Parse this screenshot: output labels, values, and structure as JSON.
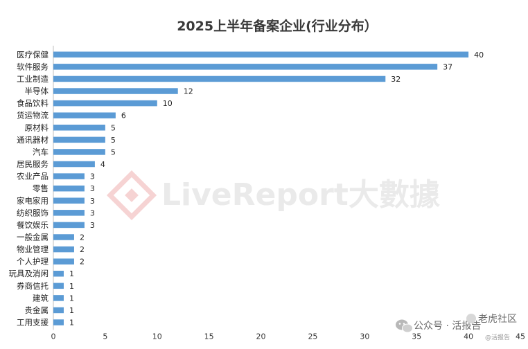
{
  "chart_data": {
    "type": "bar",
    "orientation": "horizontal",
    "title": "2025上半年备案企业(行业分布）",
    "categories": [
      "医疗保健",
      "软件服务",
      "工业制造",
      "半导体",
      "食品饮料",
      "货运物流",
      "原材料",
      "通讯器材",
      "汽车",
      "居民服务",
      "农业产品",
      "零售",
      "家电家用",
      "纺织服饰",
      "餐饮娱乐",
      "一般金属",
      "物业管理",
      "个人护理",
      "玩具及消闲",
      "券商信托",
      "建筑",
      "贵金属",
      "工用支援"
    ],
    "values": [
      40,
      37,
      32,
      12,
      10,
      6,
      5,
      5,
      5,
      4,
      3,
      3,
      3,
      3,
      3,
      2,
      2,
      2,
      1,
      1,
      1,
      1,
      1
    ],
    "xlim": [
      0,
      45
    ],
    "xticks": [
      0,
      5,
      10,
      15,
      20,
      25,
      30,
      35,
      40,
      45
    ],
    "data_labels": true,
    "grid": false,
    "legend": "none",
    "bar_color": "#5b9bd5"
  },
  "watermark": {
    "text": "LiveReport大數據"
  },
  "footer": {
    "source": "公众号 · 活报告",
    "community": "老虎社区",
    "handle": "@活报告"
  }
}
